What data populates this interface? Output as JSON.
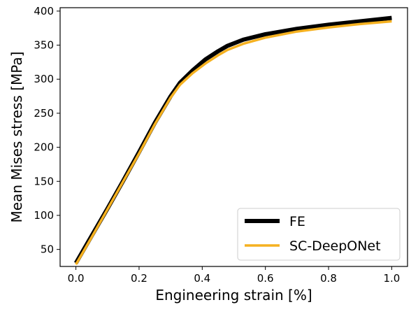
{
  "chart_data": {
    "type": "line",
    "title": "",
    "xlabel": "Engineering strain [%]",
    "ylabel": "Mean Mises stress [MPa]",
    "xlim": [
      -0.05,
      1.05
    ],
    "ylim": [
      25,
      405
    ],
    "x_ticks": [
      0.0,
      0.2,
      0.4,
      0.6,
      0.8,
      1.0
    ],
    "x_tick_labels": [
      "0.0",
      "0.2",
      "0.4",
      "0.6",
      "0.8",
      "1.0"
    ],
    "y_ticks": [
      50,
      100,
      150,
      200,
      250,
      300,
      350,
      400
    ],
    "y_tick_labels": [
      "50",
      "100",
      "150",
      "200",
      "250",
      "300",
      "350",
      "400"
    ],
    "grid": false,
    "legend_position": "bottom-right",
    "series": [
      {
        "name": "FE",
        "color": "#000000",
        "x": [
          0.0,
          0.05,
          0.1,
          0.15,
          0.2,
          0.25,
          0.3,
          0.33,
          0.37,
          0.41,
          0.45,
          0.48,
          0.53,
          0.6,
          0.7,
          0.8,
          0.9,
          1.0
        ],
        "y": [
          30,
          70,
          110,
          151,
          193,
          236,
          275,
          295,
          313,
          329,
          341,
          349,
          358,
          366,
          374,
          380,
          385,
          390
        ]
      },
      {
        "name": "SC-DeepONet",
        "color": "#f5b120",
        "x": [
          0.0,
          0.05,
          0.1,
          0.15,
          0.2,
          0.25,
          0.3,
          0.33,
          0.37,
          0.41,
          0.45,
          0.48,
          0.53,
          0.6,
          0.7,
          0.8,
          0.9,
          1.0
        ],
        "y": [
          28,
          68,
          109,
          150,
          191,
          234,
          273,
          292,
          309,
          323,
          335,
          343,
          352,
          361,
          370,
          376,
          381,
          385
        ]
      }
    ]
  }
}
